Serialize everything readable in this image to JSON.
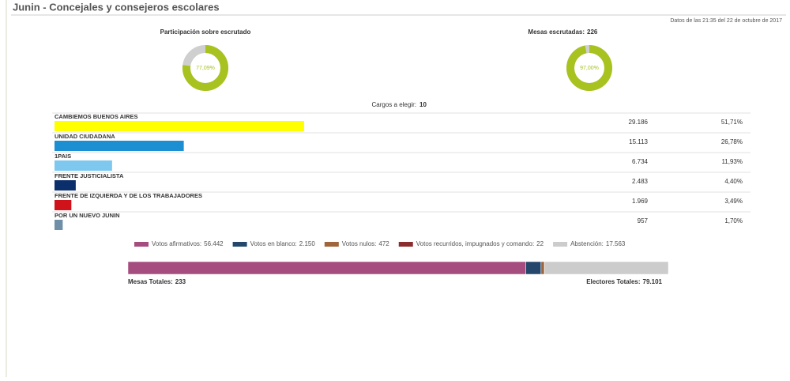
{
  "header": {
    "title": "Junin - Concejales y consejeros escolares",
    "timestamp": "Datos de las 21:35 del 22 de octubre de 2017"
  },
  "participation": {
    "label": "Participación sobre escrutado",
    "value": 77.09,
    "value_label": "77,09%"
  },
  "mesas": {
    "label": "Mesas escrutadas:",
    "count": 226,
    "value": 97.0,
    "value_label": "97,00%"
  },
  "cargos": {
    "label": "Cargos a elegir:",
    "value": 10
  },
  "parties": {
    "names": [
      "CAMBIEMOS BUENOS AIRES",
      "UNIDAD CIUDADANA",
      "1PAIS",
      "FRENTE JUSTICIALISTA",
      "FRENTE DE IZQUIERDA Y DE LOS TRABAJADORES",
      "POR UN NUEVO JUNIN"
    ],
    "votes": [
      29186,
      15113,
      6734,
      2483,
      1969,
      957
    ],
    "vote_labels": [
      "29.186",
      "15.113",
      "6.734",
      "2.483",
      "1.969",
      "957"
    ],
    "percent": [
      51.71,
      26.78,
      11.93,
      4.4,
      3.49,
      1.7
    ],
    "percent_labels": [
      "51,71%",
      "26,78%",
      "11,93%",
      "4,40%",
      "3,49%",
      "1,70%"
    ],
    "colors": [
      "#ffff00",
      "#1b8fd2",
      "#7ec8f0",
      "#0b2f6b",
      "#d0121b",
      "#6f8fa8"
    ]
  },
  "summary": {
    "items": [
      {
        "name": "Votos afirmativos:",
        "value": 56442,
        "value_label": "56.442",
        "color": "#a64d7f"
      },
      {
        "name": "Votos en blanco:",
        "value": 2150,
        "value_label": "2.150",
        "color": "#24476b"
      },
      {
        "name": "Votos nulos:",
        "value": 472,
        "value_label": "472",
        "color": "#a0653a"
      },
      {
        "name": "Votos recurridos, impugnados y comando:",
        "value": 22,
        "value_label": "22",
        "color": "#8b2d2d"
      },
      {
        "name": "Abstención:",
        "value": 17563,
        "value_label": "17.563",
        "color": "#cccccc"
      }
    ]
  },
  "totals": {
    "mesas_label": "Mesas Totales:",
    "mesas": 233,
    "electores_label": "Electores Totales:",
    "electores": 79101,
    "electores_label_value": "79.101"
  }
}
